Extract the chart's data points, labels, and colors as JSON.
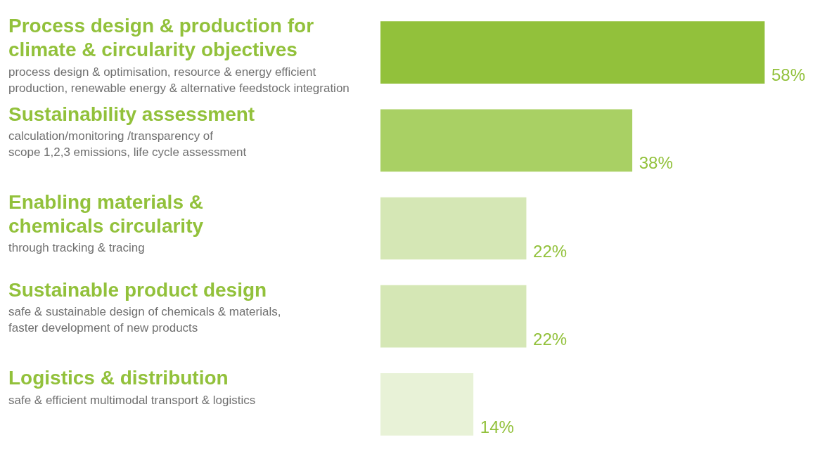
{
  "chart_data": {
    "type": "bar",
    "orientation": "horizontal",
    "categories": [
      "Process design & production for\nclimate & circularity objectives",
      "Sustainability assessment",
      "Enabling materials &\nchemicals circularity",
      "Sustainable product design",
      "Logistics & distribution"
    ],
    "values": [
      58,
      38,
      22,
      22,
      14
    ],
    "value_labels": [
      "58%",
      "38%",
      "22%",
      "22%",
      "14%"
    ],
    "colors": [
      "#92c13b",
      "#a9d064",
      "#d5e7b5",
      "#d5e7b5",
      "#e8f2d7"
    ],
    "annotations": [
      "process design & optimisation, resource & energy efficient\nproduction, renewable energy & alternative feedstock integration",
      "calculation/monitoring /transparency of\nscope 1,2,3 emissions, life cycle assessment",
      "through tracking & tracing",
      "safe & sustainable design of chemicals & materials,\nfaster development of new products",
      "safe & efficient multimodal transport & logistics"
    ],
    "legend": false
  }
}
